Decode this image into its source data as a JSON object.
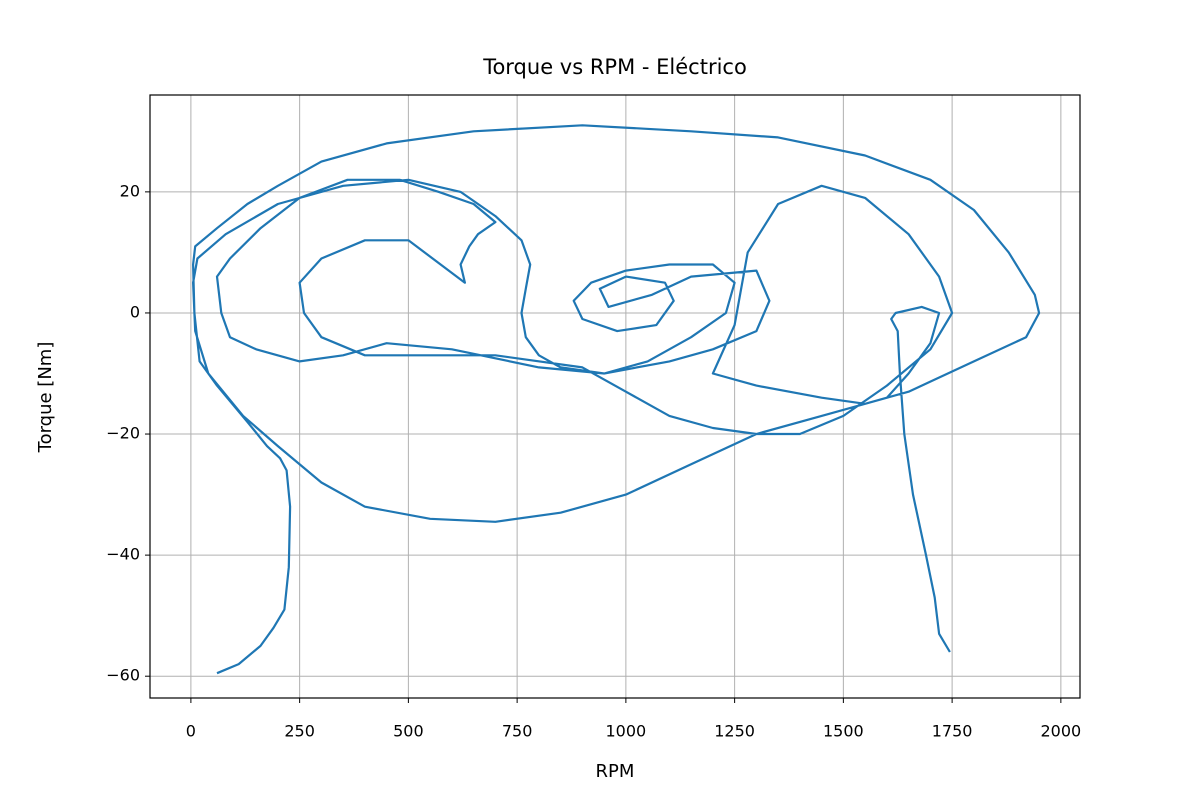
{
  "chart_data": {
    "type": "line",
    "title": "Torque vs RPM - Eléctrico",
    "x_label": "RPM",
    "y_label": "Torque [Nm]",
    "color": "#1f77b4",
    "grid": true,
    "xlim": [
      -94,
      2044
    ],
    "ylim": [
      -63.6,
      36
    ],
    "xticks": [
      0,
      250,
      500,
      750,
      1000,
      1250,
      1500,
      1750,
      2000
    ],
    "yticks": [
      {
        "value": -60,
        "label": "−60"
      },
      {
        "value": -40,
        "label": "−40"
      },
      {
        "value": -20,
        "label": "−20"
      },
      0,
      20
    ],
    "x": [
      60,
      110,
      160,
      190,
      215,
      225,
      228,
      220,
      205,
      175,
      130,
      60,
      20,
      8,
      5,
      10,
      60,
      130,
      200,
      300,
      450,
      650,
      900,
      1150,
      1350,
      1550,
      1700,
      1800,
      1880,
      1940,
      1950,
      1920,
      1800,
      1650,
      1450,
      1300,
      1150,
      1000,
      850,
      700,
      550,
      400,
      300,
      200,
      120,
      40,
      10,
      5,
      15,
      80,
      200,
      350,
      500,
      620,
      700,
      760,
      780,
      770,
      760,
      770,
      800,
      850,
      950,
      1050,
      1150,
      1230,
      1250,
      1200,
      1100,
      1000,
      920,
      880,
      900,
      980,
      1070,
      1110,
      1090,
      1000,
      940,
      960,
      1060,
      1150,
      1300,
      1330,
      1300,
      1200,
      1100,
      950,
      800,
      600,
      450,
      350,
      250,
      150,
      90,
      70,
      60,
      90,
      160,
      250,
      360,
      480,
      570,
      650,
      700,
      660,
      640,
      620,
      630,
      500,
      400,
      300,
      250,
      260,
      300,
      400,
      550,
      700,
      900,
      1000,
      1100,
      1200,
      1300,
      1400,
      1500,
      1600,
      1700,
      1750,
      1720,
      1650,
      1550,
      1450,
      1350,
      1280,
      1250,
      1200,
      1300,
      1450,
      1550,
      1600,
      1650,
      1700,
      1720,
      1680,
      1620,
      1610,
      1625,
      1630,
      1640,
      1660,
      1690,
      1710,
      1720,
      1745
    ],
    "values": [
      -59.5,
      -58,
      -55,
      -52,
      -49,
      -42,
      -32,
      -26,
      -24,
      -22,
      -18,
      -12,
      -8,
      0,
      8,
      11,
      14,
      18,
      21,
      25,
      28,
      30,
      31,
      30,
      29,
      26,
      22,
      17,
      10,
      3,
      0,
      -4,
      -8,
      -13,
      -17,
      -20,
      -25,
      -30,
      -33,
      -34.5,
      -34,
      -32,
      -28,
      -22,
      -17,
      -10,
      -3,
      5,
      9,
      13,
      18,
      21,
      22,
      20,
      16,
      12,
      8,
      4,
      0,
      -4,
      -7,
      -9,
      -10,
      -8,
      -4,
      0,
      5,
      8,
      8,
      7,
      5,
      2,
      -1,
      -3,
      -2,
      2,
      5,
      6,
      4,
      1,
      3,
      6,
      7,
      2,
      -3,
      -6,
      -8,
      -10,
      -9,
      -6,
      -5,
      -7,
      -8,
      -6,
      -4,
      0,
      6,
      9,
      14,
      19,
      22,
      22,
      20,
      18,
      15,
      13,
      11,
      8,
      5,
      12,
      12,
      9,
      5,
      0,
      -4,
      -7,
      -7,
      -7,
      -9,
      -13,
      -17,
      -19,
      -20,
      -20,
      -17,
      -12,
      -6,
      0,
      6,
      13,
      19,
      21,
      18,
      10,
      -2,
      -10,
      -12,
      -14,
      -15,
      -14,
      -10,
      -5,
      0,
      1,
      0,
      -1,
      -3,
      -10,
      -20,
      -30,
      -40,
      -47,
      -53,
      -56
    ]
  }
}
